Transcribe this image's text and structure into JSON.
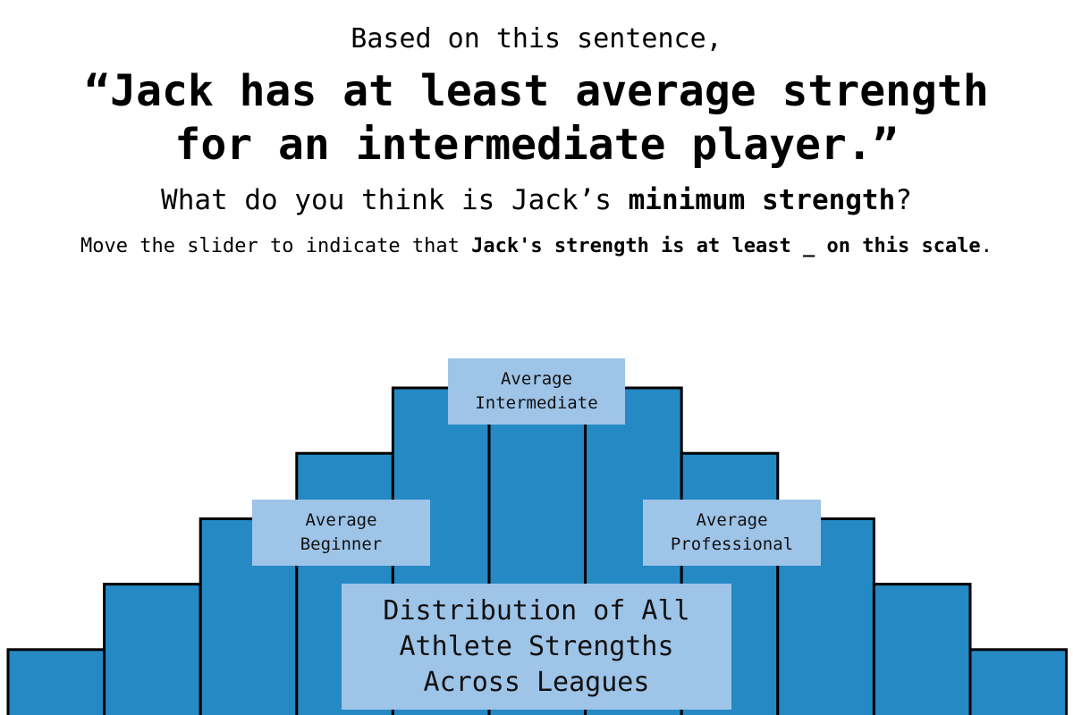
{
  "header": {
    "intro": "Based on this sentence,",
    "quote_line1": "“Jack has at least average strength",
    "quote_line2": "for an intermediate player.”",
    "question_pre": "What do you think is Jack’s ",
    "question_bold": "minimum strength",
    "question_post": "?",
    "instruction_pre": "Move the slider to indicate that ",
    "instruction_bold": "Jack's strength is at least _ on this scale",
    "instruction_post": "."
  },
  "chart_data": {
    "type": "bar",
    "title": "",
    "xlabel": "",
    "ylabel": "",
    "bar_count": 11,
    "relative_heights": [
      1,
      2,
      3,
      4,
      5,
      5.3,
      5,
      4,
      3,
      2,
      1
    ],
    "bar_color": "#2589c4",
    "edge_color": "#000000",
    "annotations": [
      {
        "text": "Average\nIntermediate",
        "bin": 5
      },
      {
        "text": "Average\nBeginner",
        "bin": 3
      },
      {
        "text": "Average\nProfessional",
        "bin": 7
      },
      {
        "text": "Distribution of All\nAthlete Strengths\nAcross Leagues",
        "bin": 5
      }
    ],
    "annotation_color": "#9ec4e8"
  }
}
